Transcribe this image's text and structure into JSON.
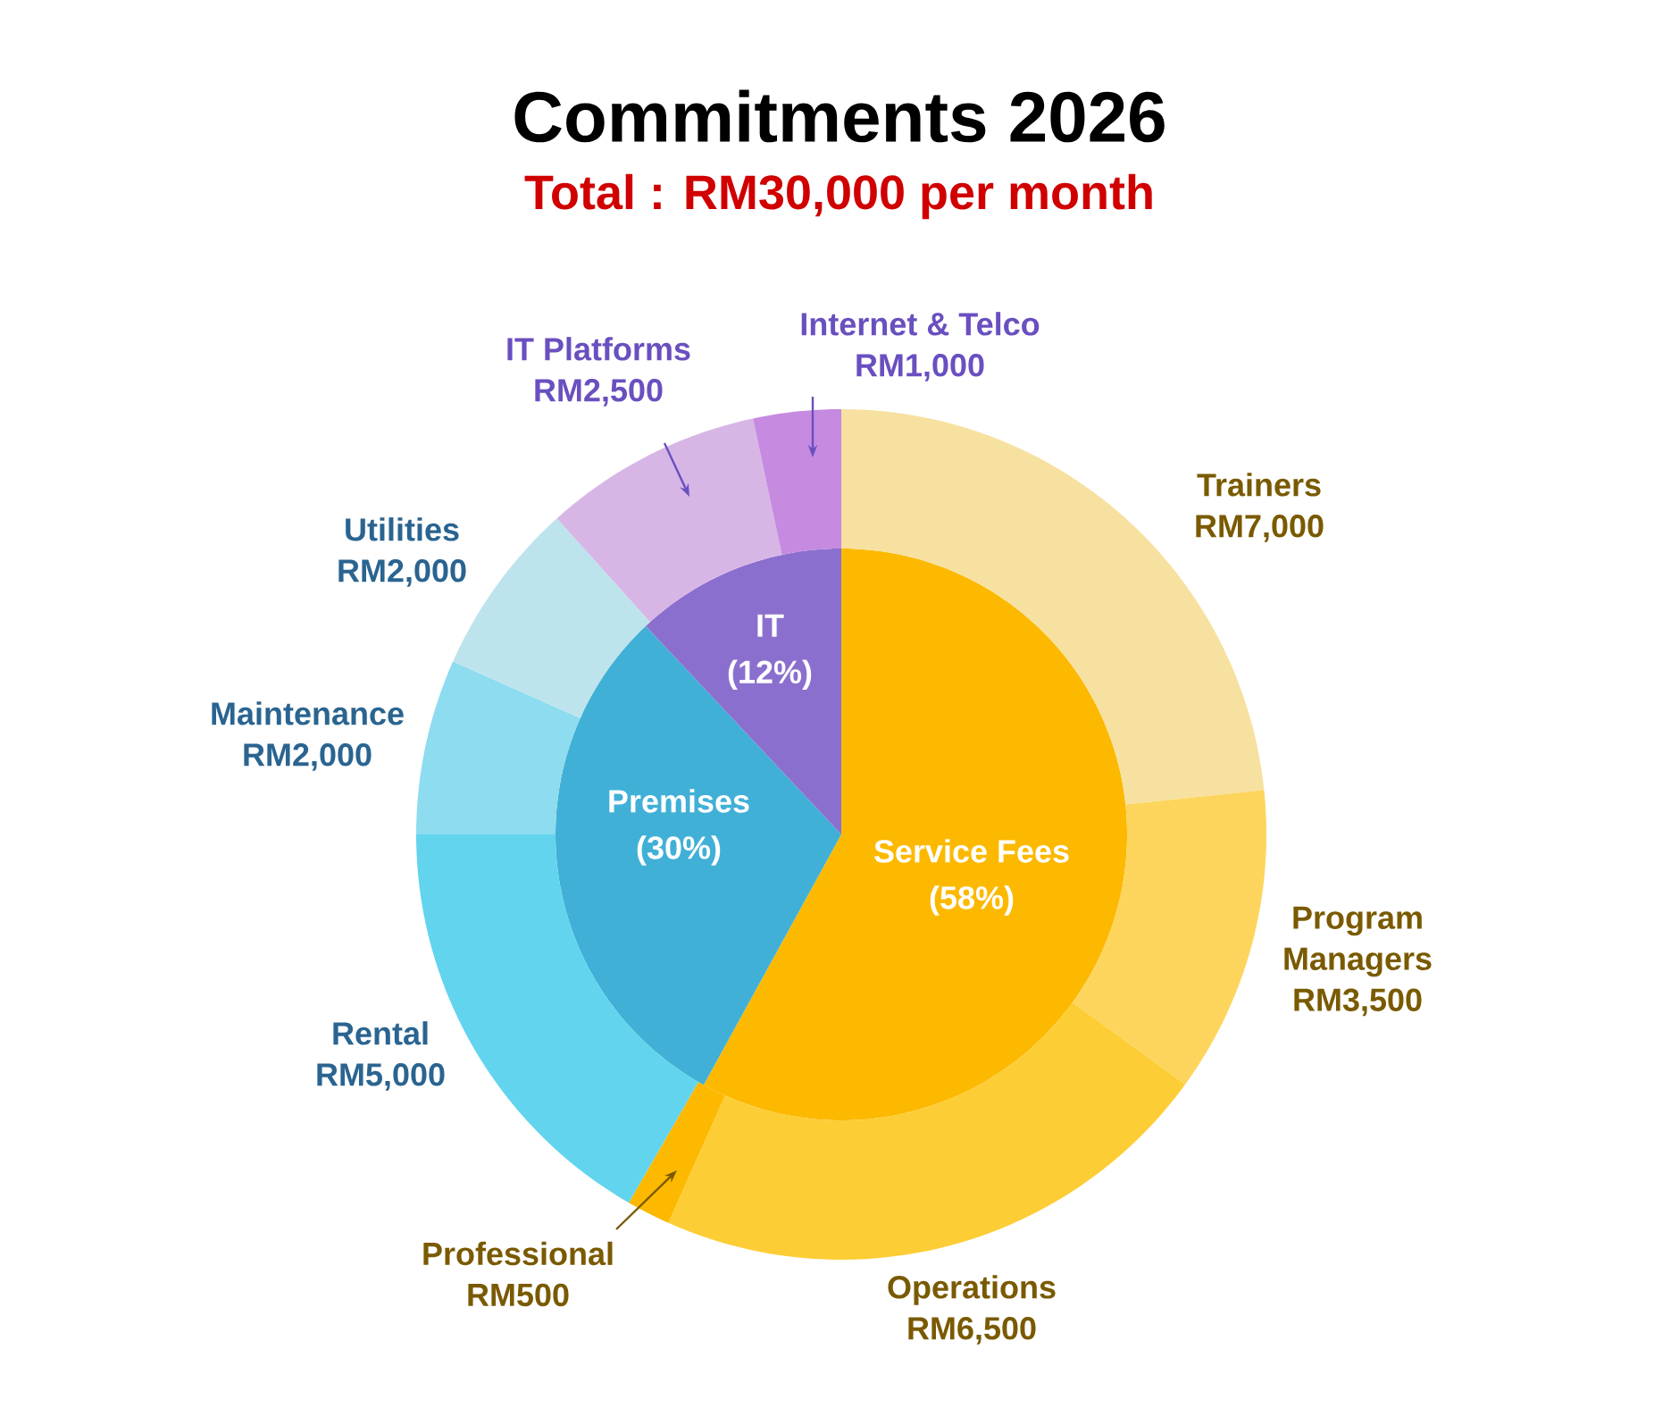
{
  "chart_data": [
    {
      "type": "pie",
      "title": "Commitments 2026",
      "subtitle": "Total : RM30,000 per month",
      "categories": [
        "Service Fees",
        "Premises",
        "IT"
      ],
      "values": [
        58,
        30,
        12
      ],
      "value_labels": [
        "(58%)",
        "(30%)",
        "(12%)"
      ],
      "colors": [
        "#fcb900",
        "#41b0d7",
        "#8b6fce"
      ]
    },
    {
      "type": "donut",
      "categories": [
        "Trainers",
        "Program Managers",
        "Operations",
        "Professional",
        "Rental",
        "Maintenance",
        "Utilities",
        "IT Platforms",
        "Internet & Telco"
      ],
      "values": [
        7000,
        3500,
        6500,
        500,
        5000,
        2000,
        2000,
        2500,
        1000
      ],
      "value_labels": [
        "RM7,000",
        "RM3,500",
        "RM6,500",
        "RM500",
        "RM5,000",
        "RM2,000",
        "RM2,000",
        "RM2,500",
        "RM1,000"
      ],
      "colors": [
        "#f7e1a0",
        "#fdd55c",
        "#fdcd35",
        "#fcb900",
        "#62d4ee",
        "#8ddcf0",
        "#bde4ec",
        "#d7b6e6",
        "#c68ae0"
      ]
    }
  ]
}
